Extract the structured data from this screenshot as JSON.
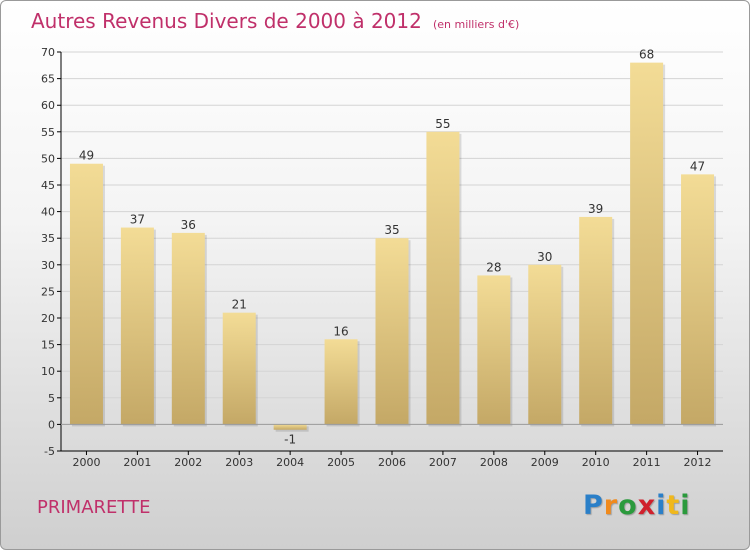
{
  "title": "Autres Revenus Divers de 2000 à 2012",
  "unit": "(en milliers d'€)",
  "place": "PRIMARETTE",
  "logo": {
    "letters": [
      "P",
      "r",
      "o",
      "x",
      "i",
      "t",
      "i"
    ],
    "colors": [
      "#2a7fc8",
      "#f08a1c",
      "#2a9a3c",
      "#d0202c",
      "#2a7fc8",
      "#f0b81c",
      "#2a9a3c"
    ]
  },
  "colors": {
    "title": "#c0306a",
    "bar_light": "#f3dc96",
    "bar_dark": "#c4a866",
    "grid": "#d4d4d4",
    "axis": "#000000"
  },
  "chart_data": {
    "type": "bar",
    "categories": [
      "2000",
      "2001",
      "2002",
      "2003",
      "2004",
      "2005",
      "2006",
      "2007",
      "2008",
      "2009",
      "2010",
      "2011",
      "2012"
    ],
    "values": [
      49,
      37,
      36,
      21,
      -1,
      16,
      35,
      55,
      28,
      30,
      39,
      68,
      47
    ],
    "value_labels": [
      "49",
      "37",
      "36",
      "21",
      "-1",
      "16",
      "35",
      "55",
      "28",
      "30",
      "39",
      "68",
      "47"
    ],
    "ylim": [
      -5,
      70
    ],
    "yticks": [
      -5,
      0,
      5,
      10,
      15,
      20,
      25,
      30,
      35,
      40,
      45,
      50,
      55,
      60,
      65,
      70
    ],
    "grid": true
  }
}
